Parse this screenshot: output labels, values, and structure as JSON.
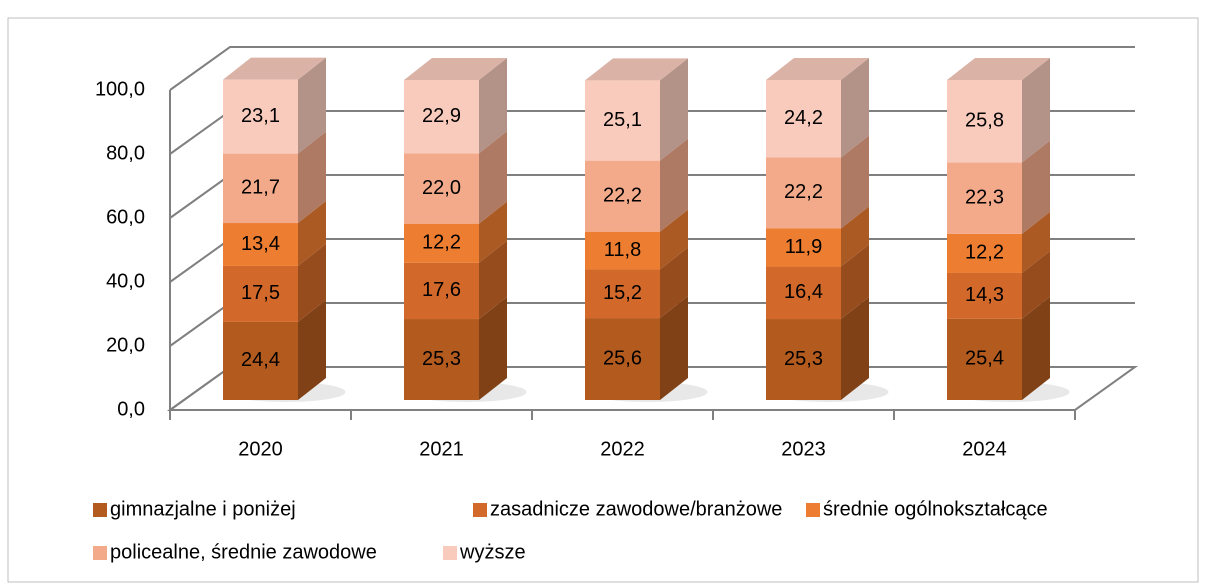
{
  "chart_data": {
    "type": "bar3d_stacked",
    "categories": [
      "2020",
      "2021",
      "2022",
      "2023",
      "2024"
    ],
    "series": [
      {
        "name": "gimnazjalne i poniżej",
        "color": "#b35a1f",
        "values": [
          24.4,
          25.3,
          25.6,
          25.3,
          25.4
        ],
        "value_labels": [
          "24,4",
          "25,3",
          "25,6",
          "25,3",
          "25,4"
        ]
      },
      {
        "name": "zasadnicze zawodowe/branżowe",
        "color": "#d2692a",
        "values": [
          17.5,
          17.6,
          15.2,
          16.4,
          14.3
        ],
        "value_labels": [
          "17,5",
          "17,6",
          "15,2",
          "16,4",
          "14,3"
        ]
      },
      {
        "name": "średnie ogólnokształcące",
        "color": "#ed7d31",
        "values": [
          13.4,
          12.2,
          11.8,
          11.9,
          12.2
        ],
        "value_labels": [
          "13,4",
          "12,2",
          "11,8",
          "11,9",
          "12,2"
        ]
      },
      {
        "name": "policealne, średnie zawodowe",
        "color": "#f2aa8a",
        "values": [
          21.7,
          22.0,
          22.2,
          22.2,
          22.3
        ],
        "value_labels": [
          "21,7",
          "22,0",
          "22,2",
          "22,2",
          "22,3"
        ]
      },
      {
        "name": "wyższe",
        "color": "#f8cbbd",
        "values": [
          23.1,
          22.9,
          25.1,
          24.2,
          25.8
        ],
        "value_labels": [
          "23,1",
          "22,9",
          "25,1",
          "24,2",
          "25,8"
        ]
      }
    ],
    "ylim": [
      0,
      100
    ],
    "yticks": [
      {
        "value": 0,
        "label": "0,0"
      },
      {
        "value": 20,
        "label": "20,0"
      },
      {
        "value": 40,
        "label": "40,0"
      },
      {
        "value": 60,
        "label": "60,0"
      },
      {
        "value": 80,
        "label": "80,0"
      },
      {
        "value": 100,
        "label": "100,0"
      }
    ],
    "grid": true
  }
}
